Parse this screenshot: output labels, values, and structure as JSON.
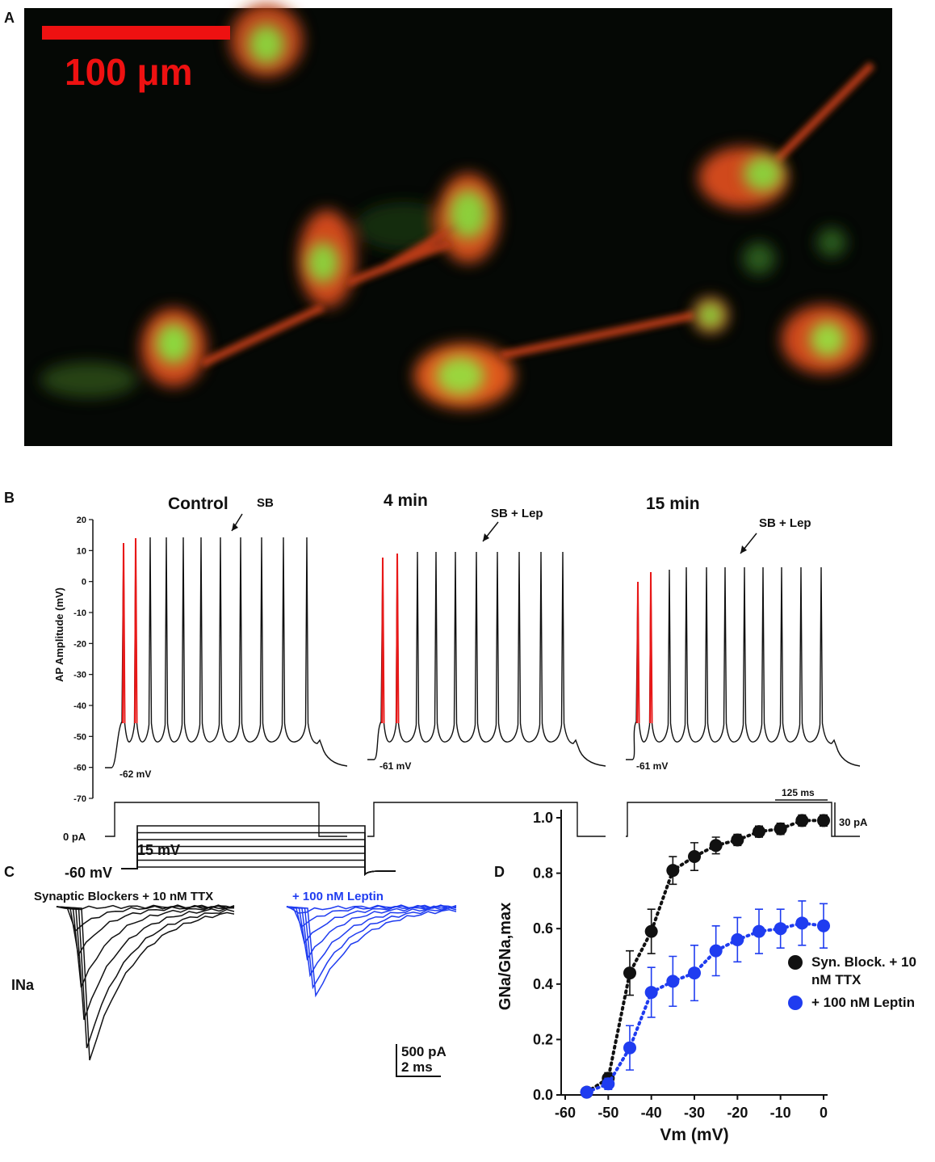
{
  "panel_labels": [
    "A",
    "B",
    "C",
    "D"
  ],
  "micrograph": {
    "scale_bar": "100 μm"
  },
  "patch_clamp": {
    "holding_label": "15 mV",
    "base_label": "-60 mV",
    "control_label": "Synaptic Blockers + 10 nM TTX",
    "leptin_label": "+ 100 nM Leptin",
    "current_label": "INa",
    "current_scale": "500 pA",
    "time_scale": "2 ms"
  },
  "chart_data": [
    {
      "type": "trace",
      "y_label": "AP Amplitude (mV)",
      "ylim": [
        -70,
        20
      ],
      "yticks": [
        20,
        10,
        0,
        -10,
        -20,
        -30,
        -40,
        -50,
        -60,
        -70
      ],
      "sweeps": [
        {
          "title": "Control",
          "annotation": "SB",
          "resting_label": "-62 mV"
        },
        {
          "title": "4 min",
          "annotation": "SB + Lep",
          "resting_label": "-61 mV"
        },
        {
          "title": "15 min",
          "annotation": "SB + Lep",
          "resting_label": "-61 mV"
        }
      ],
      "step_label": "0 pA",
      "time_scale": "125 ms",
      "current_scale": "30 pA"
    },
    {
      "type": "scatter",
      "x_label": "Vm (mV)",
      "y_label": "GNa/GNa,max",
      "xlim": [
        -60,
        0
      ],
      "ylim": [
        0,
        1
      ],
      "xticks": [
        -60,
        -50,
        -40,
        -30,
        -20,
        -10,
        0
      ],
      "yticks": [
        {
          "value": 0,
          "label": "0.0"
        },
        {
          "value": 0.2,
          "label": "0.2"
        },
        {
          "value": 0.4,
          "label": "0.4"
        },
        {
          "value": 0.6,
          "label": "0.6"
        },
        {
          "value": 0.8,
          "label": "0.8"
        },
        {
          "value": 1,
          "label": "1.0"
        }
      ],
      "x": [
        -55,
        -50,
        -45,
        -40,
        -35,
        -30,
        -25,
        -20,
        -15,
        -10,
        -5,
        0
      ],
      "series": [
        {
          "name": "Syn. Block. + 10 nM TTX",
          "color": "#111111",
          "values": [
            0.01,
            0.06,
            0.44,
            0.59,
            0.81,
            0.86,
            0.9,
            0.92,
            0.95,
            0.96,
            0.99,
            0.99
          ],
          "errors": [
            0.005,
            0.02,
            0.08,
            0.08,
            0.05,
            0.05,
            0.03,
            0.02,
            0.02,
            0.02,
            0.02,
            0.02
          ]
        },
        {
          "name": "+ 100 nM Leptin",
          "color": "#1f3cf0",
          "values": [
            0.01,
            0.04,
            0.17,
            0.37,
            0.41,
            0.44,
            0.52,
            0.56,
            0.59,
            0.6,
            0.62,
            0.61
          ],
          "errors": [
            0.01,
            0.02,
            0.08,
            0.09,
            0.09,
            0.1,
            0.09,
            0.08,
            0.08,
            0.07,
            0.08,
            0.08
          ]
        }
      ]
    }
  ]
}
